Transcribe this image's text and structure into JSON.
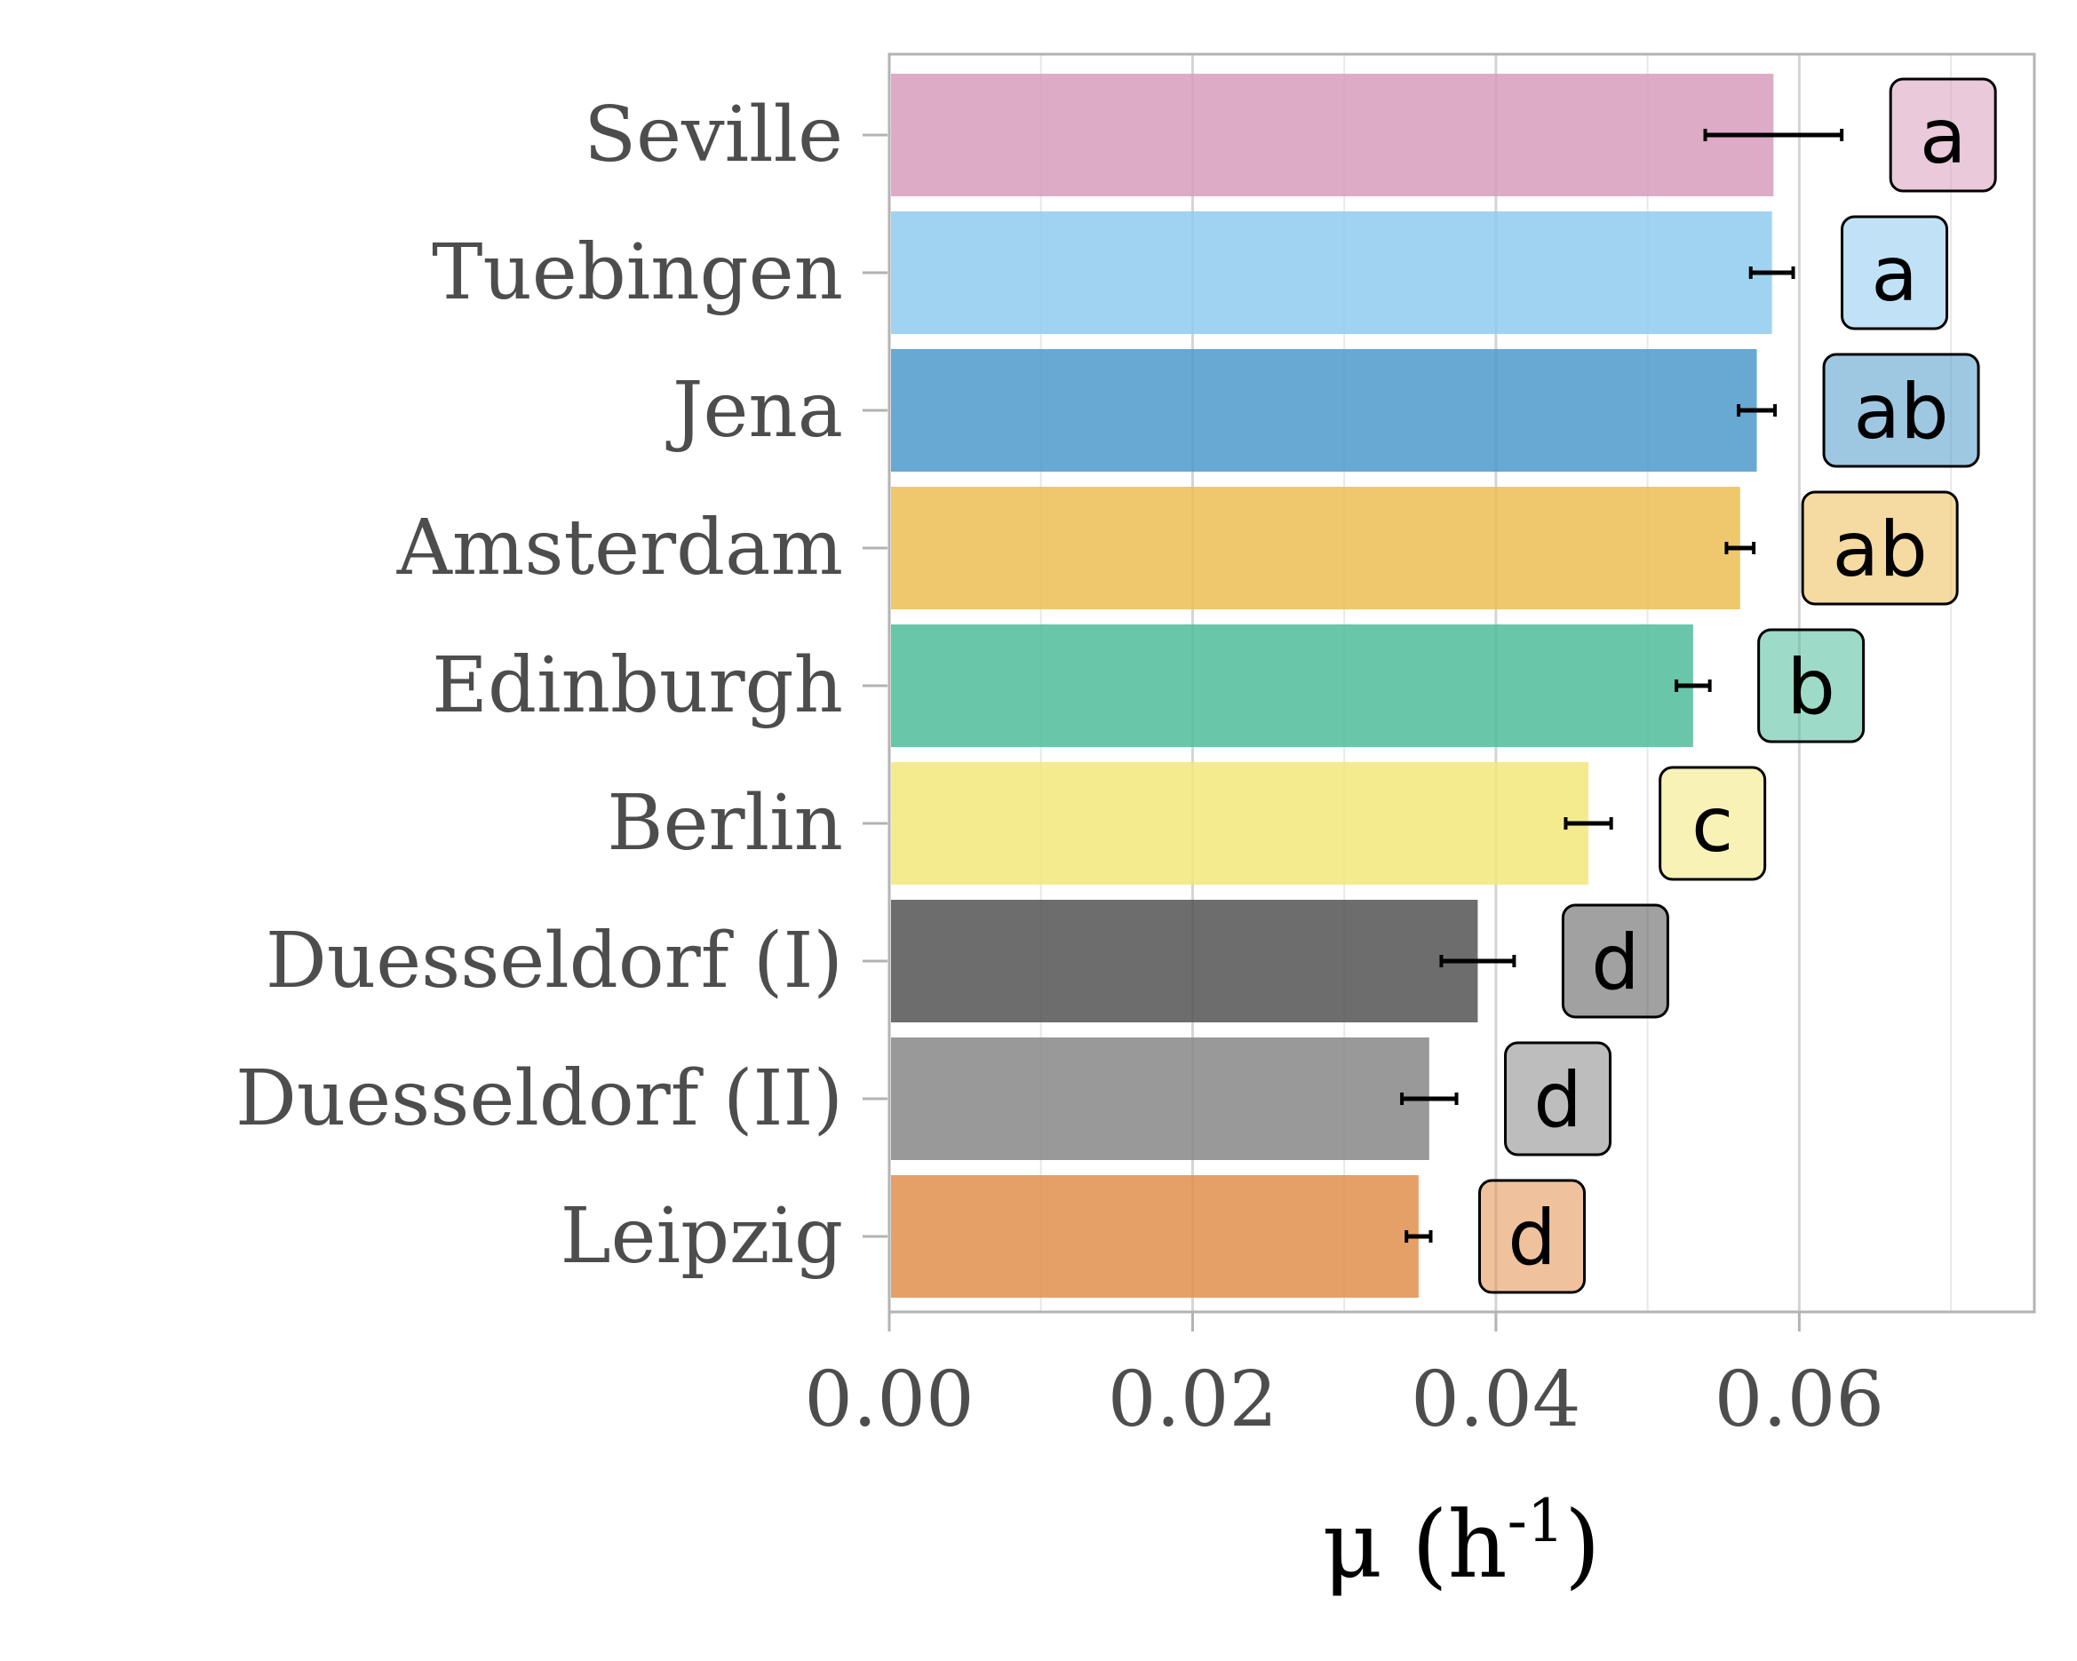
{
  "chart_data": {
    "type": "bar",
    "orientation": "horizontal",
    "categories": [
      "Seville",
      "Tuebingen",
      "Jena",
      "Amsterdam",
      "Edinburgh",
      "Berlin",
      "Duesseldorf (I)",
      "Duesseldorf (II)",
      "Leipzig"
    ],
    "values": [
      0.0583,
      0.0582,
      0.0572,
      0.0561,
      0.053,
      0.0461,
      0.0388,
      0.0356,
      0.0349
    ],
    "errors": [
      0.0045,
      0.0014,
      0.0012,
      0.0009,
      0.0011,
      0.0015,
      0.0024,
      0.0018,
      0.0008
    ],
    "significance_letters": [
      "a",
      "a",
      "ab",
      "ab",
      "b",
      "c",
      "d",
      "d",
      "d"
    ],
    "colors": [
      "#d89cbd",
      "#8ecbee",
      "#4e9acb",
      "#ecbe53",
      "#4fbc9a",
      "#f2e87b",
      "#545454",
      "#878787",
      "#e18f4d"
    ],
    "xlim": [
      0,
      0.0755
    ],
    "xticks": [
      0.0,
      0.02,
      0.04,
      0.06
    ],
    "xtick_labels": [
      "0.00",
      "0.02",
      "0.04",
      "0.06"
    ],
    "xlabel": {
      "main": "μ (h",
      "superscript": "-1",
      "close": ")"
    },
    "ylabel": "",
    "title": "",
    "grid": "vertical",
    "legend": "none"
  }
}
